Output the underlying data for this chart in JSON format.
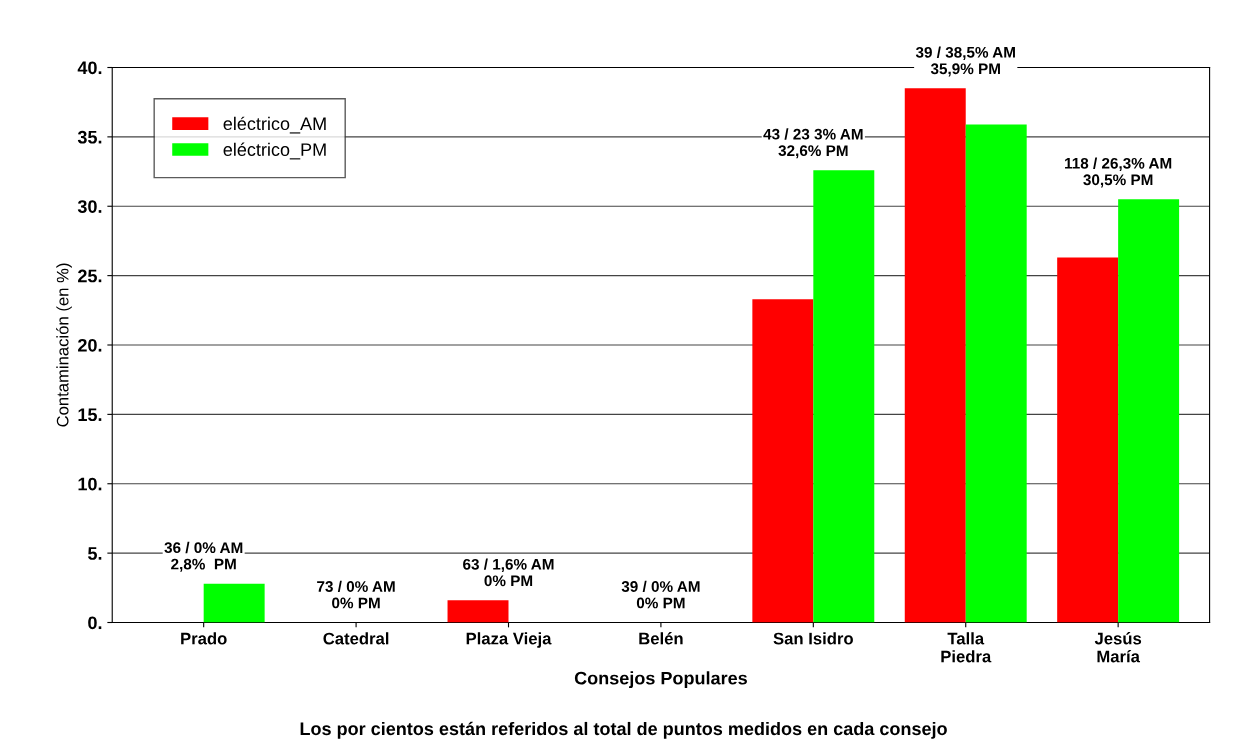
{
  "chart_data": {
    "type": "bar",
    "xlabel": "Consejos Populares",
    "ylabel": "Contaminación (en %)",
    "categories": [
      "Prado",
      "Catedral",
      "Plaza Vieja",
      "Belén",
      "San Isidro",
      "Talla\nPiedra",
      "Jesús\nMaría"
    ],
    "series": [
      {
        "name": "eléctrico_AM",
        "color": "#ff0000",
        "values": [
          0,
          0,
          1.6,
          0,
          23.3,
          38.5,
          26.3
        ]
      },
      {
        "name": "eléctrico_PM",
        "color": "#00ff00",
        "values": [
          2.8,
          0,
          0,
          0,
          32.6,
          35.9,
          30.5
        ]
      }
    ],
    "ylim": [
      0,
      40
    ],
    "yticks": [
      {
        "value": 0,
        "label": "0."
      },
      {
        "value": 5,
        "label": "5."
      },
      {
        "value": 10,
        "label": "10."
      },
      {
        "value": 15,
        "label": "15."
      },
      {
        "value": 20,
        "label": "20."
      },
      {
        "value": 25,
        "label": "25."
      },
      {
        "value": 30,
        "label": "30."
      },
      {
        "value": 35,
        "label": "35."
      },
      {
        "value": 40,
        "label": "40."
      }
    ],
    "grid": "y",
    "legend": "top left",
    "annotations": [
      "36 / 0% AM\n2,8%  PM",
      "73 / 0% AM\n0% PM",
      "63 / 1,6% AM\n0% PM",
      "39 / 0% AM\n0% PM",
      "43 / 23 3% AM\n32,6% PM",
      "39 / 38,5% AM\n35,9% PM",
      "118 / 26,3% AM\n30,5% PM",
      "Los por cientos están referidos al total de puntos medidos en cada consejo"
    ]
  }
}
